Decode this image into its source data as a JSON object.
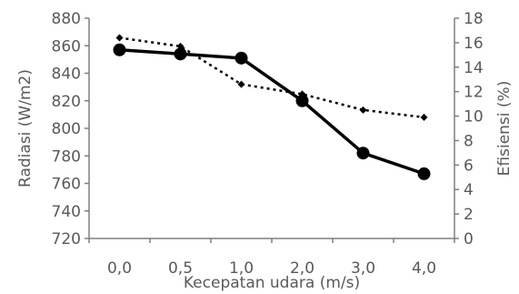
{
  "chart_data": {
    "type": "line",
    "categories": [
      "0,0",
      "0,5",
      "1,0",
      "2,0",
      "3,0",
      "4,0"
    ],
    "xlabel": "Kecepatan udara (m/s)",
    "ylabel_left": "Radiasi (W/m2)",
    "ylabel_right": "Efisiensi (%)",
    "ylim_left": [
      720,
      880
    ],
    "yticks_left": [
      720,
      740,
      760,
      780,
      800,
      820,
      840,
      860,
      880
    ],
    "ylim_right": [
      0,
      18
    ],
    "yticks_right": [
      0,
      2,
      4,
      6,
      8,
      10,
      12,
      14,
      16,
      18
    ],
    "grid": false,
    "legend": "none",
    "series": [
      {
        "axis": "left",
        "style": "solid",
        "color": "#000000",
        "values": [
          857,
          854,
          851,
          820,
          782,
          767
        ]
      },
      {
        "axis": "right",
        "style": "dotted",
        "color": "#000000",
        "values": [
          16.4,
          15.7,
          12.6,
          11.8,
          10.5,
          9.9
        ]
      }
    ]
  }
}
